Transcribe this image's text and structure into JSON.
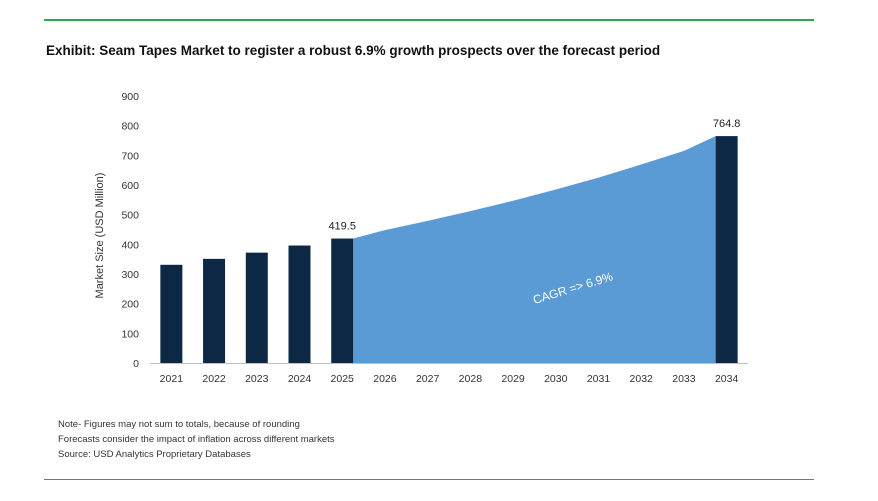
{
  "title": "Exhibit: Seam Tapes Market to register a robust 6.9% growth prospects over the forecast period",
  "notes": [
    "Note- Figures may not sum to totals, because of rounding",
    "Forecasts consider the impact of inflation across different markets",
    "Source: USD Analytics Proprietary Databases"
  ],
  "colors": {
    "bar": "#0d2844",
    "area": "#5b9bd5",
    "top_rule": "#2ea84b",
    "bottom_rule": "#777777"
  },
  "chart_data": {
    "type": "bar",
    "categories": [
      "2021",
      "2022",
      "2023",
      "2024",
      "2025",
      "2026",
      "2027",
      "2028",
      "2029",
      "2030",
      "2031",
      "2032",
      "2033",
      "2034"
    ],
    "series": [
      {
        "values": [
          331,
          351,
          372,
          396,
          419.5,
          null,
          null,
          null,
          null,
          null,
          null,
          null,
          null,
          764.8
        ]
      }
    ],
    "area": {
      "type": "area",
      "x": [
        "2025",
        "2026",
        "2027",
        "2028",
        "2029",
        "2030",
        "2031",
        "2032",
        "2033",
        "2034"
      ],
      "values": [
        419.5,
        448,
        479,
        512,
        547,
        585,
        625,
        669,
        715,
        764.8
      ]
    },
    "data_labels": [
      {
        "category": "2025",
        "text": "419.5"
      },
      {
        "category": "2034",
        "text": "764.8"
      }
    ],
    "annotation": "CAGR => 6.9%",
    "ylabel": "Market Size (USD Million)",
    "xlabel": "",
    "ylim": [
      0,
      900
    ],
    "yticks": [
      0,
      100,
      200,
      300,
      400,
      500,
      600,
      700,
      800,
      900
    ],
    "grid": false,
    "legend": "none"
  }
}
